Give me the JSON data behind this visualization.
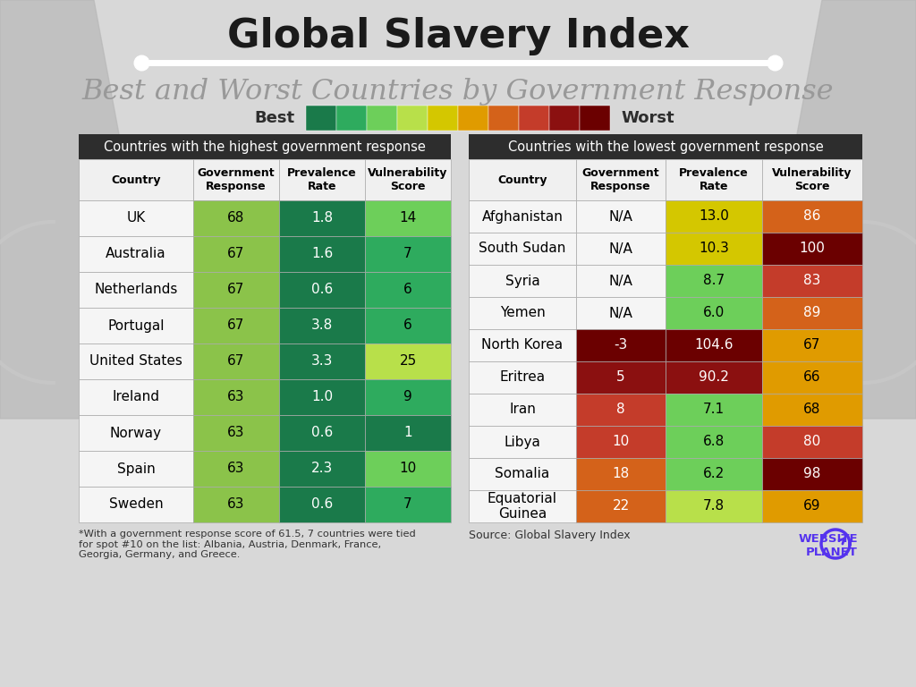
{
  "title": "Global Slavery Index",
  "subtitle": "Best and Worst Countries by Government Response",
  "bg_color": "#d8d8d8",
  "legend_colors": [
    "#1a7a4a",
    "#2eab5e",
    "#6dcf5a",
    "#b8e04a",
    "#d4c700",
    "#e09b00",
    "#d4621a",
    "#c43c2a",
    "#8b1010",
    "#6b0000"
  ],
  "best_table": {
    "title": "Countries with the highest government response",
    "title_bg": "#2d2d2d",
    "title_color": "#ffffff",
    "header": [
      "Country",
      "Government\nResponse",
      "Prevalence\nRate",
      "Vulnerability\nScore"
    ],
    "rows": [
      [
        "UK",
        "68",
        "1.8",
        "14"
      ],
      [
        "Australia",
        "67",
        "1.6",
        "7"
      ],
      [
        "Netherlands",
        "67",
        "0.6",
        "6"
      ],
      [
        "Portugal",
        "67",
        "3.8",
        "6"
      ],
      [
        "United States",
        "67",
        "3.3",
        "25"
      ],
      [
        "Ireland",
        "63",
        "1.0",
        "9"
      ],
      [
        "Norway",
        "63",
        "0.6",
        "1"
      ],
      [
        "Spain",
        "63",
        "2.3",
        "10"
      ],
      [
        "Sweden",
        "63",
        "0.6",
        "7"
      ]
    ],
    "cell_colors": [
      [
        "#f5f5f5",
        "#8bc34a",
        "#1a7a4a",
        "#6dcf5a"
      ],
      [
        "#f5f5f5",
        "#8bc34a",
        "#1a7a4a",
        "#2eab5e"
      ],
      [
        "#f5f5f5",
        "#8bc34a",
        "#1a7a4a",
        "#2eab5e"
      ],
      [
        "#f5f5f5",
        "#8bc34a",
        "#1a7a4a",
        "#2eab5e"
      ],
      [
        "#f5f5f5",
        "#8bc34a",
        "#1a7a4a",
        "#b8e04a"
      ],
      [
        "#f5f5f5",
        "#8bc34a",
        "#1a7a4a",
        "#2eab5e"
      ],
      [
        "#f5f5f5",
        "#8bc34a",
        "#1a7a4a",
        "#1a7a4a"
      ],
      [
        "#f5f5f5",
        "#8bc34a",
        "#1a7a4a",
        "#6dcf5a"
      ],
      [
        "#f5f5f5",
        "#8bc34a",
        "#1a7a4a",
        "#2eab5e"
      ]
    ],
    "text_colors": [
      [
        "#000000",
        "#000000",
        "#ffffff",
        "#000000"
      ],
      [
        "#000000",
        "#000000",
        "#ffffff",
        "#000000"
      ],
      [
        "#000000",
        "#000000",
        "#ffffff",
        "#000000"
      ],
      [
        "#000000",
        "#000000",
        "#ffffff",
        "#000000"
      ],
      [
        "#000000",
        "#000000",
        "#ffffff",
        "#000000"
      ],
      [
        "#000000",
        "#000000",
        "#ffffff",
        "#000000"
      ],
      [
        "#000000",
        "#000000",
        "#ffffff",
        "#ffffff"
      ],
      [
        "#000000",
        "#000000",
        "#ffffff",
        "#000000"
      ],
      [
        "#000000",
        "#000000",
        "#ffffff",
        "#000000"
      ]
    ],
    "footnote": "*With a government response score of 61.5, 7 countries were tied\nfor spot #10 on the list: Albania, Austria, Denmark, France,\nGeorgia, Germany, and Greece."
  },
  "worst_table": {
    "title": "Countries with the lowest government response",
    "title_bg": "#2d2d2d",
    "title_color": "#ffffff",
    "header": [
      "Country",
      "Government\nResponse",
      "Prevalence\nRate",
      "Vulnerability\nScore"
    ],
    "rows": [
      [
        "Afghanistan",
        "N/A",
        "13.0",
        "86"
      ],
      [
        "South Sudan",
        "N/A",
        "10.3",
        "100"
      ],
      [
        "Syria",
        "N/A",
        "8.7",
        "83"
      ],
      [
        "Yemen",
        "N/A",
        "6.0",
        "89"
      ],
      [
        "North Korea",
        "-3",
        "104.6",
        "67"
      ],
      [
        "Eritrea",
        "5",
        "90.2",
        "66"
      ],
      [
        "Iran",
        "8",
        "7.1",
        "68"
      ],
      [
        "Libya",
        "10",
        "6.8",
        "80"
      ],
      [
        "Somalia",
        "18",
        "6.2",
        "98"
      ],
      [
        "Equatorial\nGuinea",
        "22",
        "7.8",
        "69"
      ]
    ],
    "cell_colors": [
      [
        "#f5f5f5",
        "#f5f5f5",
        "#d4c700",
        "#d4621a"
      ],
      [
        "#f5f5f5",
        "#f5f5f5",
        "#d4c700",
        "#6b0000"
      ],
      [
        "#f5f5f5",
        "#f5f5f5",
        "#6dcf5a",
        "#c43c2a"
      ],
      [
        "#f5f5f5",
        "#f5f5f5",
        "#6dcf5a",
        "#d4621a"
      ],
      [
        "#f5f5f5",
        "#6b0000",
        "#6b0000",
        "#e09b00"
      ],
      [
        "#f5f5f5",
        "#8b1010",
        "#8b1010",
        "#e09b00"
      ],
      [
        "#f5f5f5",
        "#c43c2a",
        "#6dcf5a",
        "#e09b00"
      ],
      [
        "#f5f5f5",
        "#c43c2a",
        "#6dcf5a",
        "#c43c2a"
      ],
      [
        "#f5f5f5",
        "#d4621a",
        "#6dcf5a",
        "#6b0000"
      ],
      [
        "#f5f5f5",
        "#d4621a",
        "#b8e04a",
        "#e09b00"
      ]
    ],
    "text_colors": [
      [
        "#000000",
        "#000000",
        "#000000",
        "#ffffff"
      ],
      [
        "#000000",
        "#000000",
        "#000000",
        "#ffffff"
      ],
      [
        "#000000",
        "#000000",
        "#000000",
        "#ffffff"
      ],
      [
        "#000000",
        "#000000",
        "#000000",
        "#ffffff"
      ],
      [
        "#000000",
        "#ffffff",
        "#ffffff",
        "#000000"
      ],
      [
        "#000000",
        "#ffffff",
        "#ffffff",
        "#000000"
      ],
      [
        "#000000",
        "#ffffff",
        "#000000",
        "#000000"
      ],
      [
        "#000000",
        "#ffffff",
        "#000000",
        "#ffffff"
      ],
      [
        "#000000",
        "#ffffff",
        "#000000",
        "#ffffff"
      ],
      [
        "#000000",
        "#ffffff",
        "#000000",
        "#000000"
      ]
    ],
    "source": "Source: Global Slavery Index"
  }
}
